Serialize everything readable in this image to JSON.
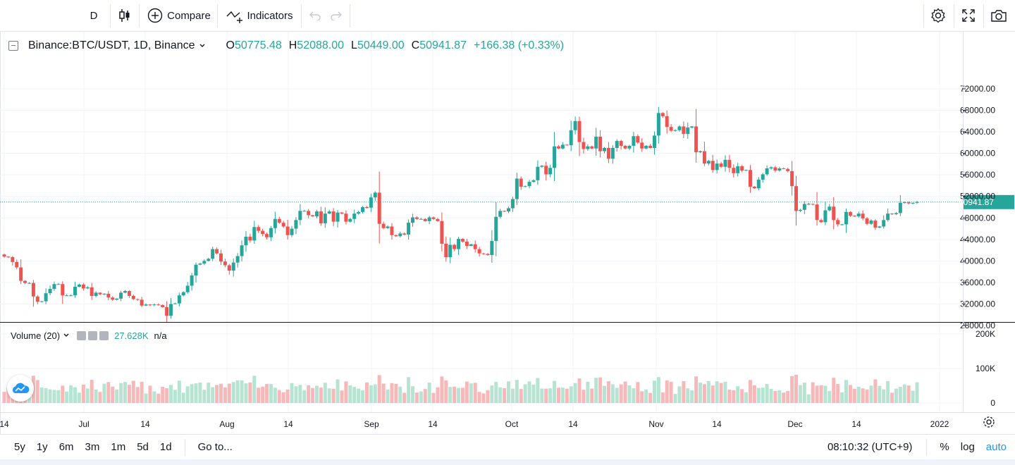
{
  "toolbar": {
    "interval": "D",
    "compare_label": "Compare",
    "indicators_label": "Indicators"
  },
  "legend": {
    "symbol": "Binance:BTC/USDT, 1D, Binance",
    "o_key": "O",
    "o_val": "50775.48",
    "h_key": "H",
    "h_val": "52088.00",
    "l_key": "L",
    "l_val": "50449.00",
    "c_key": "C",
    "c_val": "50941.87",
    "change": "+166.38 (+0.33%)"
  },
  "volume_legend": {
    "label": "Volume (20)",
    "value": "27.628K",
    "ma": "n/a"
  },
  "bottom": {
    "ranges": [
      "5y",
      "1y",
      "6m",
      "3m",
      "1m",
      "5d",
      "1d"
    ],
    "goto_label": "Go to...",
    "clock": "08:10:32 (UTC+9)",
    "percent_label": "%",
    "log_label": "log",
    "auto_label": "auto"
  },
  "colors": {
    "up": "#26a69a",
    "down": "#ef5350",
    "vol_up": "#b7e4d2",
    "vol_down": "#f7b8ba",
    "grid": "#f0f3fa",
    "last_price_bg": "#26a69a"
  },
  "chart_data": {
    "type": "candlestick",
    "title": "Binance:BTC/USDT, 1D, Binance",
    "price_axis": {
      "ticks": [
        28000,
        32000,
        36000,
        40000,
        44000,
        48000,
        52000,
        56000,
        60000,
        64000,
        68000,
        72000
      ],
      "labels": [
        "28000.00",
        "32000.00",
        "36000.00",
        "40000.00",
        "44000.00",
        "48000.00",
        "52000.00",
        "56000.00",
        "60000.00",
        "64000.00",
        "68000.00",
        "72000.00"
      ]
    },
    "volume_axis": {
      "ticks": [
        0,
        100000,
        200000
      ],
      "labels": [
        "0",
        "100K",
        "200K"
      ]
    },
    "time_axis": [
      "14",
      "Jul",
      "14",
      "Aug",
      "14",
      "Sep",
      "14",
      "Oct",
      "14",
      "Nov",
      "14",
      "Dec",
      "14",
      "2022"
    ],
    "last_price": 50941.87,
    "last_price_label": "50941.87",
    "closes": [
      40800,
      40700,
      39800,
      38800,
      36300,
      35900,
      35900,
      33400,
      32400,
      32500,
      34000,
      34800,
      35700,
      35700,
      33600,
      33600,
      33600,
      35200,
      35600,
      34900,
      35100,
      33500,
      34100,
      33800,
      33900,
      33200,
      32800,
      33000,
      34100,
      34400,
      33500,
      32900,
      32800,
      31700,
      31900,
      31800,
      31900,
      31800,
      31400,
      29800,
      32000,
      32100,
      33600,
      34200,
      35400,
      37300,
      39300,
      39500,
      40000,
      40400,
      42200,
      41400,
      39900,
      39200,
      38200,
      39700,
      40900,
      42900,
      44500,
      43800,
      46300,
      45600,
      45000,
      44400,
      46100,
      47800,
      47100,
      46400,
      44800,
      46000,
      47600,
      49300,
      49300,
      48500,
      48300,
      49200,
      47000,
      48800,
      49200,
      47300,
      49000,
      48800,
      47300,
      47800,
      48800,
      49100,
      50000,
      49900,
      51800,
      52700,
      46900,
      46100,
      46400,
      44800,
      44600,
      45100,
      44900,
      47100,
      48100,
      47800,
      47800,
      47400,
      48100,
      47800,
      47400,
      43200,
      40700,
      43000,
      42200,
      44100,
      43600,
      42800,
      43100,
      42200,
      41400,
      41300,
      41100,
      43700,
      48200,
      49300,
      49200,
      49800,
      51500,
      55300,
      53800,
      53900,
      54700,
      55000,
      57500,
      57700,
      56100,
      57300,
      61300,
      60900,
      61600,
      61500,
      64300,
      66000,
      62100,
      60800,
      61300,
      60900,
      63100,
      60400,
      61000,
      59000,
      61000,
      62300,
      61400,
      60900,
      61400,
      63200,
      62000,
      60900,
      61400,
      61000,
      63300,
      67500,
      66900,
      64900,
      64200,
      64300,
      65000,
      63600,
      64800,
      65000,
      60200,
      60400,
      58100,
      58600,
      56900,
      58100,
      57500,
      58800,
      57300,
      56300,
      57600,
      56800,
      56900,
      53800,
      53500,
      55100,
      56100,
      57200,
      57400,
      56800,
      57200,
      57100,
      56700,
      53900,
      49300,
      49500,
      50600,
      50600,
      50500,
      47600,
      47200,
      49400,
      50100,
      47600,
      46800,
      46800,
      49100,
      48400,
      48300,
      48800,
      47900,
      46900,
      47500,
      46200,
      46400,
      47600,
      48800,
      48700,
      48900,
      50800,
      50900,
      50700,
      50800,
      50942
    ]
  }
}
